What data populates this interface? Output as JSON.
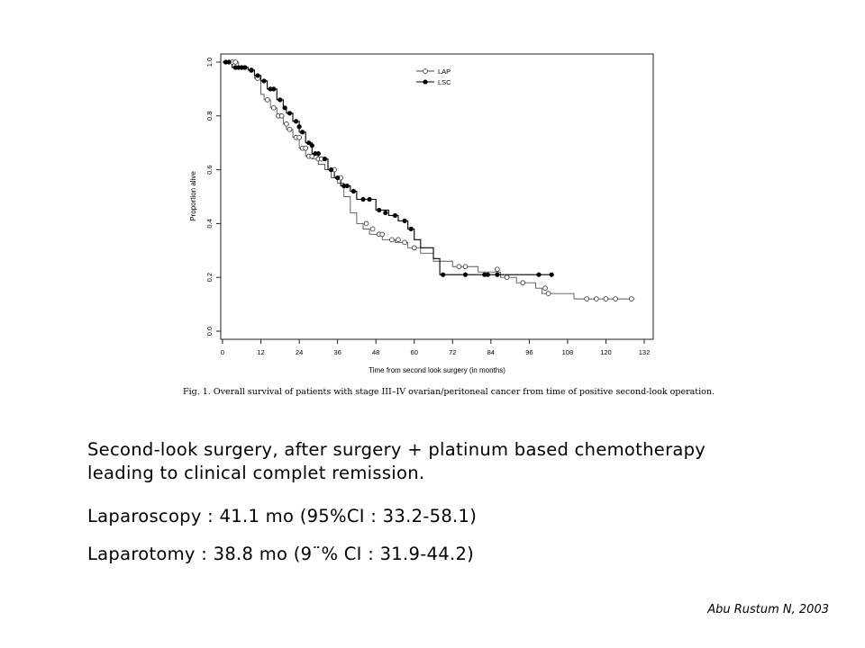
{
  "chart_data": {
    "type": "line",
    "xlabel": "Time from second look surgery (in months)",
    "ylabel": "Proportion alive",
    "xlim": [
      0,
      132
    ],
    "ylim": [
      0,
      1
    ],
    "xticks": [
      0,
      12,
      24,
      36,
      48,
      60,
      72,
      84,
      96,
      108,
      120,
      132
    ],
    "yticks": [
      0.0,
      0.2,
      0.4,
      0.6,
      0.8,
      1.0
    ],
    "grid": false,
    "legend_position": "top-right",
    "series": [
      {
        "name": "LAP",
        "marker": "open-circle",
        "steps": [
          [
            0,
            1.0
          ],
          [
            5,
            0.98
          ],
          [
            8,
            0.97
          ],
          [
            10,
            0.94
          ],
          [
            12,
            0.88
          ],
          [
            13,
            0.86
          ],
          [
            15,
            0.83
          ],
          [
            17,
            0.8
          ],
          [
            19,
            0.77
          ],
          [
            20,
            0.75
          ],
          [
            22,
            0.72
          ],
          [
            24,
            0.68
          ],
          [
            26,
            0.65
          ],
          [
            28,
            0.64
          ],
          [
            30,
            0.62
          ],
          [
            32,
            0.6
          ],
          [
            34,
            0.57
          ],
          [
            36,
            0.55
          ],
          [
            38,
            0.5
          ],
          [
            40,
            0.44
          ],
          [
            42,
            0.4
          ],
          [
            44,
            0.38
          ],
          [
            46,
            0.36
          ],
          [
            50,
            0.34
          ],
          [
            54,
            0.33
          ],
          [
            58,
            0.31
          ],
          [
            62,
            0.29
          ],
          [
            66,
            0.26
          ],
          [
            72,
            0.24
          ],
          [
            80,
            0.22
          ],
          [
            87,
            0.2
          ],
          [
            92,
            0.18
          ],
          [
            98,
            0.16
          ],
          [
            100,
            0.14
          ],
          [
            110,
            0.12
          ],
          [
            129,
            0.12
          ]
        ],
        "censored": [
          [
            3,
            1.0
          ],
          [
            4,
            1.0
          ],
          [
            9,
            0.97
          ],
          [
            11,
            0.94
          ],
          [
            14,
            0.86
          ],
          [
            16,
            0.83
          ],
          [
            17.5,
            0.8
          ],
          [
            18.5,
            0.8
          ],
          [
            20,
            0.77
          ],
          [
            21,
            0.75
          ],
          [
            23,
            0.72
          ],
          [
            24,
            0.72
          ],
          [
            25,
            0.68
          ],
          [
            26,
            0.68
          ],
          [
            27,
            0.65
          ],
          [
            28,
            0.65
          ],
          [
            30,
            0.64
          ],
          [
            31,
            0.64
          ],
          [
            35,
            0.6
          ],
          [
            37,
            0.57
          ],
          [
            45,
            0.4
          ],
          [
            47,
            0.38
          ],
          [
            49,
            0.36
          ],
          [
            50,
            0.36
          ],
          [
            53,
            0.34
          ],
          [
            55,
            0.34
          ],
          [
            57,
            0.33
          ],
          [
            60,
            0.31
          ],
          [
            74,
            0.24
          ],
          [
            76,
            0.24
          ],
          [
            86,
            0.23
          ],
          [
            89,
            0.2
          ],
          [
            94,
            0.18
          ],
          [
            101,
            0.16
          ],
          [
            102,
            0.14
          ],
          [
            114,
            0.12
          ],
          [
            117,
            0.12
          ],
          [
            120,
            0.12
          ],
          [
            123,
            0.12
          ],
          [
            128,
            0.12
          ]
        ]
      },
      {
        "name": "LSC",
        "marker": "filled-circle",
        "steps": [
          [
            0,
            1.0
          ],
          [
            3,
            0.98
          ],
          [
            8,
            0.97
          ],
          [
            10,
            0.95
          ],
          [
            12,
            0.93
          ],
          [
            14,
            0.9
          ],
          [
            17,
            0.86
          ],
          [
            19,
            0.83
          ],
          [
            20,
            0.81
          ],
          [
            22,
            0.78
          ],
          [
            24,
            0.74
          ],
          [
            26,
            0.7
          ],
          [
            28,
            0.66
          ],
          [
            30,
            0.64
          ],
          [
            33,
            0.6
          ],
          [
            35,
            0.57
          ],
          [
            37,
            0.54
          ],
          [
            40,
            0.52
          ],
          [
            42,
            0.49
          ],
          [
            48,
            0.45
          ],
          [
            52,
            0.43
          ],
          [
            55,
            0.41
          ],
          [
            58,
            0.38
          ],
          [
            60,
            0.34
          ],
          [
            62,
            0.31
          ],
          [
            66,
            0.27
          ],
          [
            68,
            0.21
          ],
          [
            103,
            0.21
          ]
        ],
        "censored": [
          [
            1,
            1.0
          ],
          [
            2,
            1.0
          ],
          [
            4,
            0.98
          ],
          [
            5,
            0.98
          ],
          [
            6,
            0.98
          ],
          [
            7,
            0.98
          ],
          [
            9,
            0.97
          ],
          [
            11,
            0.95
          ],
          [
            13,
            0.93
          ],
          [
            15,
            0.9
          ],
          [
            16,
            0.9
          ],
          [
            18,
            0.86
          ],
          [
            19.5,
            0.83
          ],
          [
            21,
            0.81
          ],
          [
            23,
            0.78
          ],
          [
            24,
            0.76
          ],
          [
            25,
            0.74
          ],
          [
            27,
            0.7
          ],
          [
            28,
            0.69
          ],
          [
            29,
            0.66
          ],
          [
            30,
            0.66
          ],
          [
            32,
            0.64
          ],
          [
            34,
            0.6
          ],
          [
            36,
            0.57
          ],
          [
            38,
            0.54
          ],
          [
            39,
            0.54
          ],
          [
            41,
            0.52
          ],
          [
            44,
            0.49
          ],
          [
            46,
            0.49
          ],
          [
            49,
            0.45
          ],
          [
            51,
            0.44
          ],
          [
            54,
            0.43
          ],
          [
            57,
            0.41
          ],
          [
            59,
            0.38
          ],
          [
            69,
            0.21
          ],
          [
            76,
            0.21
          ],
          [
            82,
            0.21
          ],
          [
            83,
            0.21
          ],
          [
            86,
            0.21
          ],
          [
            99,
            0.21
          ],
          [
            103,
            0.21
          ]
        ]
      }
    ]
  },
  "figure_caption": "Fig. 1. Overall survival of patients with stage III–IV ovarian/peritoneal cancer from time of positive second-look operation.",
  "text_lines": [
    "Second-look surgery, after surgery + platinum based chemotherapy",
    "leading to clinical complet remission.",
    "Laparoscopy : 41.1 mo (95%CI : 33.2-58.1)",
    "Laparotomy : 38.8 mo (9¨% CI : 31.9-44.2)"
  ],
  "citation": "Abu Rustum N, 2003"
}
